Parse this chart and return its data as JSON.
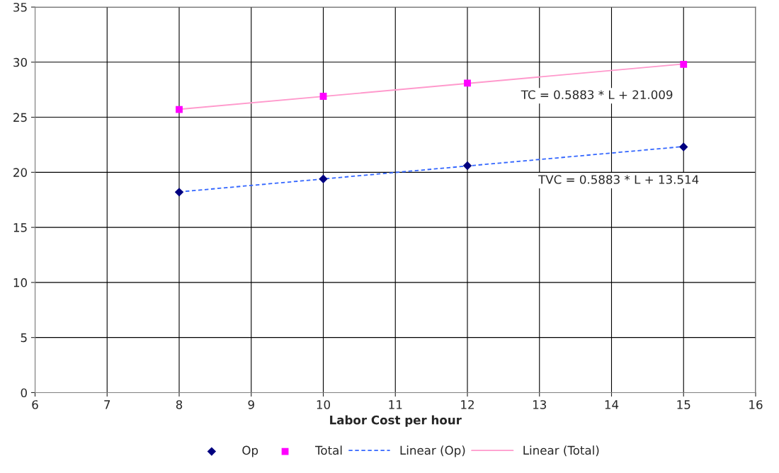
{
  "chart_data": {
    "type": "scatter",
    "xlabel": "Labor Cost per hour",
    "xlim": [
      6,
      16
    ],
    "xticks": [
      6,
      7,
      8,
      9,
      10,
      11,
      12,
      13,
      14,
      15,
      16
    ],
    "ylim": [
      0,
      35
    ],
    "yticks": [
      0,
      5,
      10,
      15,
      20,
      25,
      30,
      35
    ],
    "grid": true,
    "legend": "bottom",
    "series": [
      {
        "name": "Op",
        "marker": "diamond",
        "color": "#000080",
        "x": [
          8,
          10,
          12,
          15
        ],
        "values": [
          18.2,
          19.4,
          20.6,
          22.3
        ]
      },
      {
        "name": "Total",
        "marker": "square",
        "color": "#ff00ff",
        "x": [
          8,
          10,
          12,
          15
        ],
        "values": [
          25.7,
          26.9,
          28.1,
          29.8
        ]
      },
      {
        "name": "Linear (Op)",
        "type": "line",
        "line_style": "dashed",
        "marker": "none",
        "color": "#3366ff",
        "x": [
          8,
          15
        ],
        "values": [
          18.22,
          22.34
        ]
      },
      {
        "name": "Linear (Total)",
        "type": "line",
        "line_style": "solid",
        "marker": "none",
        "color": "#ff99cc",
        "x": [
          8,
          15
        ],
        "values": [
          25.72,
          29.83
        ]
      }
    ],
    "annotations": [
      "TC = 0.5883 * L + 21.009",
      "TVC = 0.5883 * L + 13.514"
    ]
  }
}
